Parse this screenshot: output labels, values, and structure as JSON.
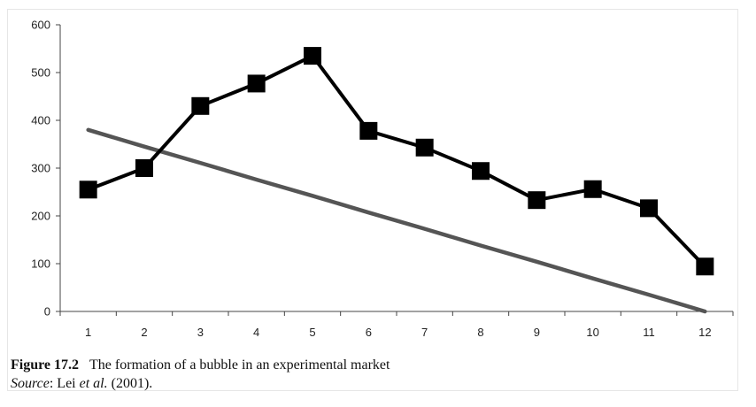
{
  "chart_data": {
    "type": "line",
    "x": [
      1,
      2,
      3,
      4,
      5,
      6,
      7,
      8,
      9,
      10,
      11,
      12
    ],
    "series": [
      {
        "values": [
          255,
          300,
          430,
          477,
          535,
          378,
          343,
          294,
          233,
          256,
          216,
          94
        ],
        "color": "#000000",
        "marker": "square"
      },
      {
        "values": [
          380,
          345,
          311,
          276,
          242,
          207,
          173,
          138,
          104,
          69,
          35,
          0
        ],
        "color": "#555555",
        "marker": "none"
      }
    ],
    "yticks": [
      "0",
      "100",
      "200",
      "300",
      "400",
      "500",
      "600"
    ],
    "xticks": [
      "1",
      "2",
      "3",
      "4",
      "5",
      "6",
      "7",
      "8",
      "9",
      "10",
      "11",
      "12"
    ],
    "ylim": [
      0,
      600
    ],
    "xlim": [
      0.5,
      12.5
    ],
    "grid": false
  },
  "caption": {
    "figure_label": "Figure 17.2",
    "figure_text": "The formation of a bubble in an experimental market",
    "source_label": "Source",
    "source_text": ": Lei ",
    "source_etal": "et al.",
    "source_year": " (2001)."
  }
}
